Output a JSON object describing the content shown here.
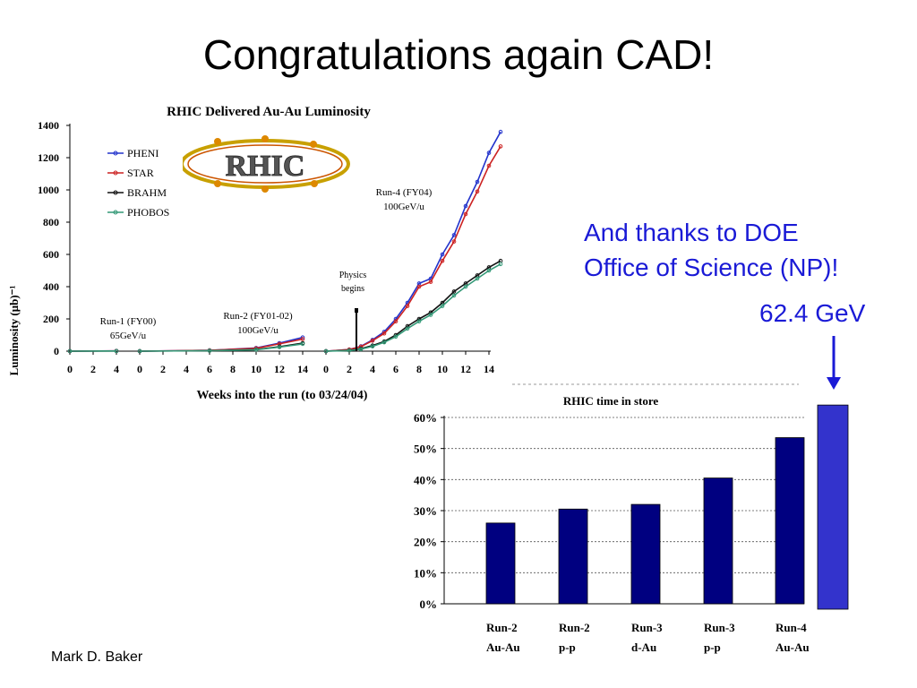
{
  "slide": {
    "title": "Congratulations again CAD!",
    "thanks_line1": "And thanks to DOE",
    "thanks_line2": "Office of Science (NP)!",
    "gev_label": "62.4 GeV",
    "author": "Mark D. Baker",
    "accent_color": "#1a1ad6"
  },
  "chart_data": [
    {
      "type": "line",
      "title": "RHIC Delivered Au-Au Luminosity",
      "xlabel": "Weeks into the run  (to 03/24/04)",
      "ylabel": "Luminosity (μb)⁻¹",
      "ylim": [
        0,
        1400
      ],
      "yticks": [
        "0",
        "200",
        "400",
        "600",
        "800",
        "1000",
        "1200",
        "1400"
      ],
      "xtick_labels": [
        "0",
        "2",
        "4",
        "0",
        "2",
        "4",
        "6",
        "8",
        "10",
        "12",
        "14",
        "0",
        "2",
        "4",
        "6",
        "8",
        "10",
        "12",
        "14"
      ],
      "logo_text": "RHIC",
      "legend": [
        "PHENI",
        "STAR",
        "BRAHM",
        "PHOBOS"
      ],
      "annotations": {
        "run1_line1": "Run-1 (FY00)",
        "run1_line2": "65GeV/u",
        "run2_line1": "Run-2 (FY01-02)",
        "run2_line2": "100GeV/u",
        "run4_line1": "Run-4 (FY04)",
        "run4_line2": "100GeV/u",
        "physics_line1": "Physics",
        "physics_line2": "begins"
      },
      "runs": [
        {
          "name": "Run-1",
          "weeks": [
            0,
            4
          ]
        },
        {
          "name": "Run-2",
          "weeks": [
            0,
            14
          ]
        },
        {
          "name": "Run-4",
          "weeks": [
            0,
            15
          ]
        }
      ],
      "series": [
        {
          "name": "PHENI",
          "color": "#2233cc",
          "run1": [
            [
              0,
              0
            ],
            [
              4,
              2
            ]
          ],
          "run2": [
            [
              0,
              0
            ],
            [
              6,
              5
            ],
            [
              10,
              20
            ],
            [
              12,
              50
            ],
            [
              14,
              85
            ]
          ],
          "run4": [
            [
              0,
              0
            ],
            [
              2,
              10
            ],
            [
              3,
              30
            ],
            [
              4,
              70
            ],
            [
              5,
              120
            ],
            [
              6,
              200
            ],
            [
              7,
              300
            ],
            [
              8,
              420
            ],
            [
              9,
              450
            ],
            [
              10,
              600
            ],
            [
              11,
              720
            ],
            [
              12,
              900
            ],
            [
              13,
              1050
            ],
            [
              14,
              1230
            ],
            [
              15,
              1360
            ]
          ]
        },
        {
          "name": "STAR",
          "color": "#cc2222",
          "run1": [
            [
              0,
              0
            ],
            [
              4,
              2
            ]
          ],
          "run2": [
            [
              0,
              0
            ],
            [
              6,
              5
            ],
            [
              10,
              18
            ],
            [
              12,
              45
            ],
            [
              14,
              75
            ]
          ],
          "run4": [
            [
              0,
              0
            ],
            [
              2,
              10
            ],
            [
              3,
              28
            ],
            [
              4,
              65
            ],
            [
              5,
              110
            ],
            [
              6,
              185
            ],
            [
              7,
              280
            ],
            [
              8,
              400
            ],
            [
              9,
              430
            ],
            [
              10,
              560
            ],
            [
              11,
              680
            ],
            [
              12,
              850
            ],
            [
              13,
              990
            ],
            [
              14,
              1150
            ],
            [
              15,
              1270
            ]
          ]
        },
        {
          "name": "BRAHM",
          "color": "#111111",
          "run1": [
            [
              0,
              0
            ],
            [
              4,
              1
            ]
          ],
          "run2": [
            [
              0,
              0
            ],
            [
              6,
              3
            ],
            [
              10,
              10
            ],
            [
              12,
              28
            ],
            [
              14,
              50
            ]
          ],
          "run4": [
            [
              0,
              0
            ],
            [
              2,
              5
            ],
            [
              3,
              15
            ],
            [
              4,
              35
            ],
            [
              5,
              60
            ],
            [
              6,
              100
            ],
            [
              7,
              155
            ],
            [
              8,
              200
            ],
            [
              9,
              240
            ],
            [
              10,
              300
            ],
            [
              11,
              370
            ],
            [
              12,
              420
            ],
            [
              13,
              470
            ],
            [
              14,
              520
            ],
            [
              15,
              560
            ]
          ]
        },
        {
          "name": "PHOBOS",
          "color": "#339977",
          "run1": [
            [
              0,
              0
            ],
            [
              4,
              1
            ]
          ],
          "run2": [
            [
              0,
              0
            ],
            [
              6,
              3
            ],
            [
              10,
              9
            ],
            [
              12,
              25
            ],
            [
              14,
              45
            ]
          ],
          "run4": [
            [
              0,
              0
            ],
            [
              2,
              4
            ],
            [
              3,
              12
            ],
            [
              4,
              30
            ],
            [
              5,
              55
            ],
            [
              6,
              90
            ],
            [
              7,
              140
            ],
            [
              8,
              185
            ],
            [
              9,
              225
            ],
            [
              10,
              280
            ],
            [
              11,
              345
            ],
            [
              12,
              400
            ],
            [
              13,
              450
            ],
            [
              14,
              500
            ],
            [
              15,
              540
            ]
          ]
        }
      ]
    },
    {
      "type": "bar",
      "title": "RHIC time in store",
      "categories": [
        [
          "Run-2",
          "Au-Au"
        ],
        [
          "Run-2",
          "p-p"
        ],
        [
          "Run-3",
          "d-Au"
        ],
        [
          "Run-3",
          "p-p"
        ],
        [
          "Run-4",
          "Au-Au"
        ],
        [
          "",
          ""
        ]
      ],
      "values": [
        26,
        30.5,
        32,
        40.5,
        53.5,
        64
      ],
      "ylim": [
        0,
        60
      ],
      "yticks": [
        "0%",
        "10%",
        "20%",
        "30%",
        "40%",
        "50%",
        "60%"
      ],
      "bar_colors": [
        "#000080",
        "#000080",
        "#000080",
        "#000080",
        "#000080",
        "#3333cc"
      ]
    }
  ]
}
